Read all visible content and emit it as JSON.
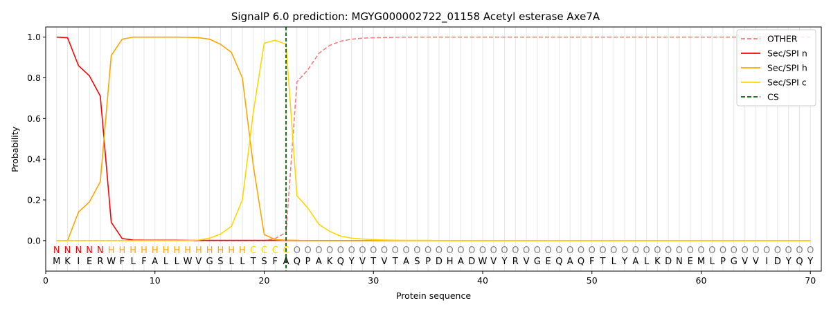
{
  "chart_data": {
    "type": "line",
    "title": "SignalP 6.0 prediction: MGYG000002722_01158 Acetyl esterase Axe7A",
    "xlabel": "Protein sequence",
    "ylabel": "Probability",
    "xlim": [
      0,
      71
    ],
    "ylim": [
      -0.15,
      1.05
    ],
    "xticks": [
      0,
      10,
      20,
      30,
      40,
      50,
      60,
      70
    ],
    "yticks": [
      0.0,
      0.2,
      0.4,
      0.6,
      0.8,
      1.0
    ],
    "xtick_labels": [
      "0",
      "10",
      "20",
      "30",
      "40",
      "50",
      "60",
      "70"
    ],
    "ytick_labels": [
      "0.0",
      "0.2",
      "0.4",
      "0.6",
      "0.8",
      "1.0"
    ],
    "grid": "vertical lines at each residue",
    "legend_position": "top-right",
    "x": [
      1,
      2,
      3,
      4,
      5,
      6,
      7,
      8,
      9,
      10,
      11,
      12,
      13,
      14,
      15,
      16,
      17,
      18,
      19,
      20,
      21,
      22,
      23,
      24,
      25,
      26,
      27,
      28,
      29,
      30,
      31,
      32,
      33,
      34,
      35,
      36,
      37,
      38,
      39,
      40,
      41,
      42,
      43,
      44,
      45,
      46,
      47,
      48,
      49,
      50,
      51,
      52,
      53,
      54,
      55,
      56,
      57,
      58,
      59,
      60,
      61,
      62,
      63,
      64,
      65,
      66,
      67,
      68,
      69,
      70
    ],
    "sequence": [
      "M",
      "K",
      "I",
      "E",
      "R",
      "W",
      "F",
      "L",
      "F",
      "A",
      "L",
      "L",
      "W",
      "V",
      "G",
      "S",
      "L",
      "L",
      "T",
      "S",
      "F",
      "A",
      "Q",
      "P",
      "A",
      "K",
      "Q",
      "Y",
      "V",
      "T",
      "V",
      "T",
      "A",
      "S",
      "P",
      "D",
      "H",
      "A",
      "D",
      "W",
      "V",
      "Y",
      "R",
      "V",
      "G",
      "E",
      "Q",
      "A",
      "Q",
      "F",
      "T",
      "L",
      "Y",
      "A",
      "L",
      "K",
      "D",
      "N",
      "E",
      "M",
      "L",
      "P",
      "G",
      "V",
      "V",
      "I",
      "D",
      "Y",
      "Q",
      "Y"
    ],
    "region_labels": [
      "N",
      "N",
      "N",
      "N",
      "N",
      "H",
      "H",
      "H",
      "H",
      "H",
      "H",
      "H",
      "H",
      "H",
      "H",
      "H",
      "H",
      "H",
      "C",
      "C",
      "C",
      "C",
      "O",
      "O",
      "O",
      "O",
      "O",
      "O",
      "O",
      "O",
      "O",
      "O",
      "O",
      "O",
      "O",
      "O",
      "O",
      "O",
      "O",
      "O",
      "O",
      "O",
      "O",
      "O",
      "O",
      "O",
      "O",
      "O",
      "O",
      "O",
      "O",
      "O",
      "O",
      "O",
      "O",
      "O",
      "O",
      "O",
      "O",
      "O",
      "O",
      "O",
      "O",
      "O",
      "O",
      "O",
      "O",
      "O",
      "O",
      "O"
    ],
    "region_colors": {
      "N": "#ff0000",
      "H": "#ffa500",
      "C": "#ffd700",
      "O": "#808080"
    },
    "series": [
      {
        "name": "OTHER",
        "color": "#f08080",
        "style": "dashed",
        "values": [
          0.0,
          0.0,
          0.0,
          0.0,
          0.0,
          0.0,
          0.0,
          0.0,
          0.0,
          0.0,
          0.0,
          0.0,
          0.0,
          0.0,
          0.0,
          0.0,
          0.0,
          0.0,
          0.0,
          0.0,
          0.01,
          0.04,
          0.78,
          0.84,
          0.92,
          0.96,
          0.98,
          0.99,
          0.995,
          0.997,
          0.998,
          0.999,
          1.0,
          1.0,
          1.0,
          1.0,
          1.0,
          1.0,
          1.0,
          1.0,
          1.0,
          1.0,
          1.0,
          1.0,
          1.0,
          1.0,
          1.0,
          1.0,
          1.0,
          1.0,
          1.0,
          1.0,
          1.0,
          1.0,
          1.0,
          1.0,
          1.0,
          1.0,
          1.0,
          1.0,
          1.0,
          1.0,
          1.0,
          1.0,
          1.0,
          1.0,
          1.0,
          1.0,
          1.0,
          1.0
        ]
      },
      {
        "name": "Sec/SPI n",
        "color": "#ff0000",
        "style": "solid",
        "values": [
          1.0,
          0.997,
          0.86,
          0.81,
          0.71,
          0.09,
          0.01,
          0.003,
          0.002,
          0.002,
          0.002,
          0.002,
          0.001,
          0.001,
          0.001,
          0.001,
          0.001,
          0.001,
          0.001,
          0.001,
          0.001,
          0.001,
          0.0,
          0.0,
          0.0,
          0.0,
          0.0,
          0.0,
          0.0,
          0.0,
          0.0,
          0.0,
          0.0,
          0.0,
          0.0,
          0.0,
          0.0,
          0.0,
          0.0,
          0.0,
          0.0,
          0.0,
          0.0,
          0.0,
          0.0,
          0.0,
          0.0,
          0.0,
          0.0,
          0.0,
          0.0,
          0.0,
          0.0,
          0.0,
          0.0,
          0.0,
          0.0,
          0.0,
          0.0,
          0.0,
          0.0,
          0.0,
          0.0,
          0.0,
          0.0,
          0.0,
          0.0,
          0.0,
          0.0,
          0.0
        ]
      },
      {
        "name": "Sec/SPI h",
        "color": "#ffa500",
        "style": "solid",
        "values": [
          0.0,
          0.0,
          0.14,
          0.19,
          0.29,
          0.91,
          0.99,
          1.0,
          1.0,
          1.0,
          1.0,
          1.0,
          0.999,
          0.997,
          0.99,
          0.965,
          0.925,
          0.8,
          0.37,
          0.03,
          0.005,
          0.002,
          0.001,
          0.0,
          0.0,
          0.0,
          0.0,
          0.0,
          0.0,
          0.0,
          0.0,
          0.0,
          0.0,
          0.0,
          0.0,
          0.0,
          0.0,
          0.0,
          0.0,
          0.0,
          0.0,
          0.0,
          0.0,
          0.0,
          0.0,
          0.0,
          0.0,
          0.0,
          0.0,
          0.0,
          0.0,
          0.0,
          0.0,
          0.0,
          0.0,
          0.0,
          0.0,
          0.0,
          0.0,
          0.0,
          0.0,
          0.0,
          0.0,
          0.0,
          0.0,
          0.0,
          0.0,
          0.0,
          0.0,
          0.0
        ]
      },
      {
        "name": "Sec/SPI c",
        "color": "#ffd700",
        "style": "solid",
        "values": [
          0.0,
          0.0,
          0.0,
          0.0,
          0.0,
          0.0,
          0.0,
          0.0,
          0.0,
          0.0,
          0.0,
          0.0,
          0.0,
          0.003,
          0.012,
          0.032,
          0.07,
          0.2,
          0.63,
          0.97,
          0.985,
          0.965,
          0.22,
          0.16,
          0.08,
          0.045,
          0.022,
          0.012,
          0.008,
          0.005,
          0.003,
          0.002,
          0.001,
          0.001,
          0.001,
          0.0,
          0.0,
          0.0,
          0.0,
          0.0,
          0.0,
          0.0,
          0.0,
          0.0,
          0.0,
          0.0,
          0.0,
          0.0,
          0.0,
          0.0,
          0.0,
          0.0,
          0.0,
          0.0,
          0.0,
          0.0,
          0.0,
          0.0,
          0.0,
          0.0,
          0.0,
          0.0,
          0.0,
          0.0,
          0.0,
          0.0,
          0.0,
          0.0,
          0.0,
          0.0
        ]
      }
    ],
    "cs": {
      "name": "CS",
      "x": 22,
      "color": "#006400",
      "style": "dashed"
    }
  }
}
